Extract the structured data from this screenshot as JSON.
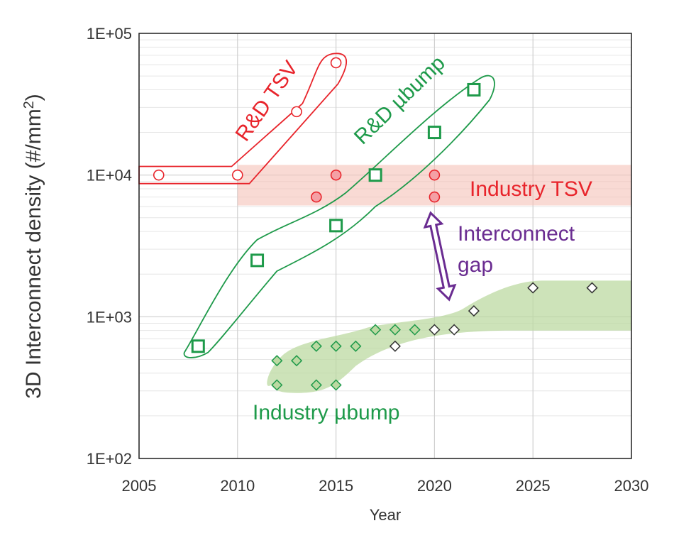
{
  "chart_data": {
    "type": "scatter",
    "xlabel": "Year",
    "ylabel": "3D Interconnect density (#/mm",
    "ylabel_sup": "2",
    "ylabel_end": ")",
    "xlim": [
      2005,
      2030
    ],
    "ylim": [
      100,
      100000
    ],
    "yscale": "log",
    "xticks": [
      2005,
      2010,
      2015,
      2020,
      2025,
      2030
    ],
    "xtick_labels": [
      "2005",
      "2010",
      "2015",
      "2020",
      "2025",
      "2030"
    ],
    "yticks": [
      100,
      1000,
      10000,
      100000
    ],
    "ytick_labels": [
      "1E+02",
      "1E+03",
      "1E+04",
      "1E+05"
    ],
    "grid": true,
    "colors": {
      "rd_tsv": "#e8242b",
      "industry_tsv": "#e8242b",
      "rd_ubump": "#1e9a4a",
      "industry_ubump": "#1e9a4a",
      "gap": "#6a2c91",
      "projection": "#333333"
    },
    "series": [
      {
        "name": "R&D TSV",
        "marker": "circle-open",
        "color": "#e8242b",
        "points": [
          [
            2006,
            10000
          ],
          [
            2010,
            10000
          ],
          [
            2013,
            28000
          ],
          [
            2015,
            62000
          ]
        ]
      },
      {
        "name": "Industry TSV",
        "marker": "circle-filled",
        "color": "#e8242b",
        "points": [
          [
            2014,
            7000
          ],
          [
            2015,
            10000
          ],
          [
            2020,
            10000
          ],
          [
            2020,
            7000
          ]
        ]
      },
      {
        "name": "R&D µbump",
        "marker": "square-open",
        "color": "#1e9a4a",
        "points": [
          [
            2008,
            620
          ],
          [
            2011,
            2500
          ],
          [
            2015,
            4400
          ],
          [
            2017,
            10000
          ],
          [
            2020,
            20000
          ],
          [
            2022,
            40000
          ]
        ]
      },
      {
        "name": "Industry µbump",
        "marker": "diamond-green",
        "color": "#1e9a4a",
        "points": [
          [
            2012,
            490
          ],
          [
            2012,
            330
          ],
          [
            2013,
            490
          ],
          [
            2014,
            620
          ],
          [
            2014,
            330
          ],
          [
            2015,
            620
          ],
          [
            2015,
            330
          ],
          [
            2016,
            620
          ],
          [
            2017,
            810
          ],
          [
            2018,
            810
          ],
          [
            2019,
            810
          ]
        ]
      },
      {
        "marker": "diamond-black",
        "color": "#333333",
        "points": [
          [
            2018,
            620
          ],
          [
            2020,
            810
          ],
          [
            2021,
            810
          ],
          [
            2022,
            1100
          ],
          [
            2025,
            1600
          ],
          [
            2028,
            1600
          ]
        ]
      }
    ],
    "annotations": {
      "rd_tsv": "R&D TSV",
      "industry_tsv": "Industry TSV",
      "rd_ubump": "R&D µbump",
      "industry_ubump": "Industry µbump",
      "gap_line1": "Interconnect",
      "gap_line2": "gap"
    }
  }
}
